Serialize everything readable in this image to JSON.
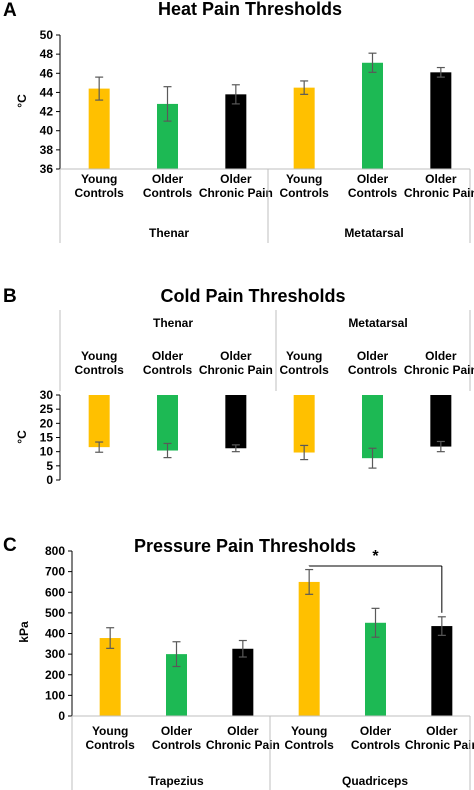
{
  "colors": {
    "young": "#FFC000",
    "older": "#1DB954",
    "chronic": "#000000",
    "error": "#595959",
    "axis": "#000000",
    "grid": "#bfbfbf"
  },
  "chart_data": [
    {
      "panel": "A",
      "type": "bar",
      "title": "Heat Pain Thresholds",
      "ylabel": "°C",
      "ylim": [
        36,
        50
      ],
      "yticks": [
        "36",
        "38",
        "40",
        "42",
        "44",
        "46",
        "48",
        "50"
      ],
      "categories": [
        "Young Controls",
        "Older Controls",
        "Older Chronic Pain",
        "Young Controls",
        "Older Controls",
        "Older Chronic Pain"
      ],
      "groups": [
        "Thenar",
        "Metatarsal"
      ],
      "values": [
        44.4,
        42.8,
        43.8,
        44.5,
        47.1,
        46.1
      ],
      "errors": [
        1.2,
        1.8,
        1.0,
        0.7,
        1.0,
        0.5
      ]
    },
    {
      "panel": "B",
      "type": "bar",
      "title": "Cold Pain Thresholds",
      "ylabel": "°C",
      "ylim": [
        0,
        30
      ],
      "yticks": [
        "0",
        "5",
        "10",
        "15",
        "20",
        "25",
        "30"
      ],
      "categories": [
        "Young Controls",
        "Older Controls",
        "Older Chronic Pain",
        "Young Controls",
        "Older Controls",
        "Older Chronic Pain"
      ],
      "groups": [
        "Thenar",
        "Metatarsal"
      ],
      "values": [
        11.6,
        10.4,
        11.2,
        9.7,
        7.7,
        11.8
      ],
      "errors": [
        1.8,
        2.5,
        1.2,
        2.5,
        3.5,
        1.8
      ]
    },
    {
      "panel": "C",
      "type": "bar",
      "title": "Pressure Pain Thresholds",
      "ylabel": "kPa",
      "ylim": [
        0,
        800
      ],
      "yticks": [
        "0",
        "100",
        "200",
        "300",
        "400",
        "500",
        "600",
        "700",
        "800"
      ],
      "categories": [
        "Young Controls",
        "Older Controls",
        "Older Chronic Pain",
        "Young Controls",
        "Older Controls",
        "Older Chronic Pain"
      ],
      "groups": [
        "Trapezius",
        "Quadriceps"
      ],
      "values": [
        378,
        300,
        326,
        650,
        452,
        436
      ],
      "errors": [
        50,
        60,
        40,
        60,
        70,
        45
      ],
      "annotation": "*"
    }
  ]
}
